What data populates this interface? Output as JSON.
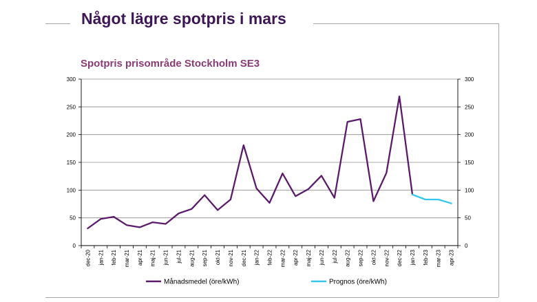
{
  "slide": {
    "title": "Något lägre spotpris i mars"
  },
  "chart_data": {
    "type": "line",
    "title": "Spotpris prisområde Stockholm SE3",
    "categories": [
      "dec-20",
      "jan-21",
      "feb-21",
      "mar-21",
      "apr-21",
      "maj-21",
      "jun-21",
      "jul-21",
      "aug-21",
      "sep-21",
      "okt-21",
      "nov-21",
      "dec-21",
      "jan-22",
      "feb-22",
      "mar-22",
      "apr-22",
      "maj-22",
      "jun-22",
      "jul-22",
      "aug-22",
      "sep-22",
      "okt-22",
      "nov-22",
      "dec-22",
      "jan-23",
      "feb-23",
      "mar-23",
      "apr-23"
    ],
    "series": [
      {
        "name": "Månadsmedel (öre/kWh)",
        "color": "#5c1a6b",
        "values": [
          31,
          48,
          52,
          37,
          33,
          42,
          39,
          58,
          66,
          91,
          64,
          83,
          181,
          103,
          77,
          130,
          89,
          102,
          126,
          86,
          223,
          228,
          80,
          131,
          269,
          92,
          null,
          null,
          null
        ]
      },
      {
        "name": "Prognos (öre/kWh)",
        "color": "#35c6f0",
        "values": [
          null,
          null,
          null,
          null,
          null,
          null,
          null,
          null,
          null,
          null,
          null,
          null,
          null,
          null,
          null,
          null,
          null,
          null,
          null,
          null,
          null,
          null,
          null,
          null,
          null,
          92,
          83,
          83,
          76
        ]
      }
    ],
    "ylim": [
      0,
      300
    ],
    "yticks": [
      "0",
      "50",
      "100",
      "150",
      "200",
      "250",
      "300"
    ],
    "secondary_yticks": [
      "0",
      "50",
      "100",
      "150",
      "200",
      "250",
      "300"
    ],
    "grid": true,
    "legend": "bottom"
  }
}
